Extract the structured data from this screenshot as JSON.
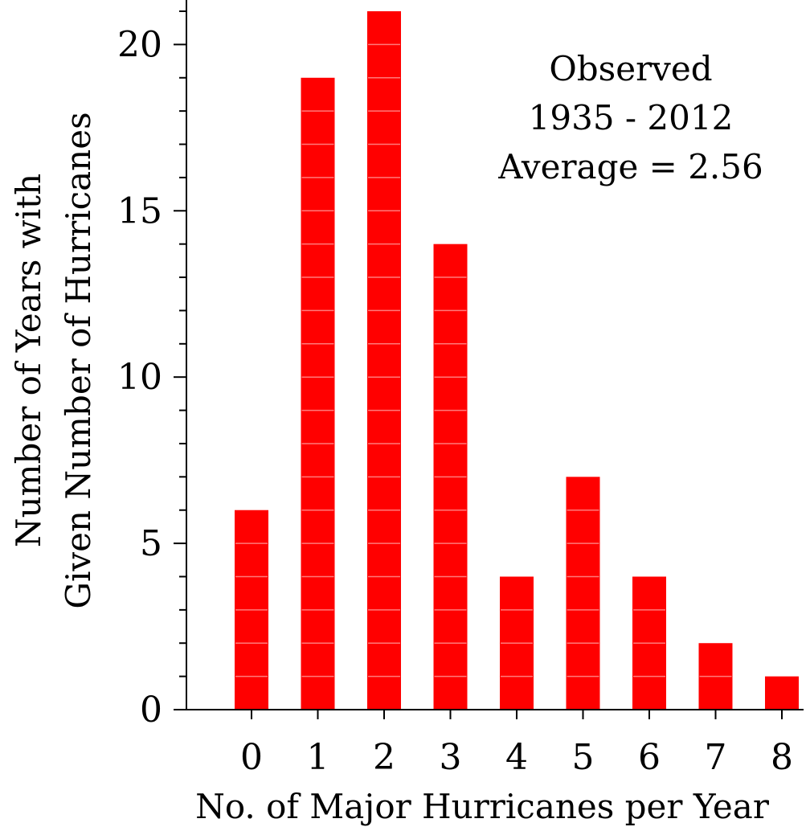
{
  "chart_data": {
    "type": "bar",
    "categories": [
      "0",
      "1",
      "2",
      "3",
      "4",
      "5",
      "6",
      "7",
      "8"
    ],
    "values": [
      6,
      19,
      21,
      14,
      4,
      7,
      4,
      2,
      1
    ],
    "xlabel": "No. of Major Hurricanes per Year",
    "ylabel_lines": [
      "Number of Years with",
      "Given Number of Hurricanes"
    ],
    "ylim": [
      0,
      21
    ],
    "yticks": [
      0,
      5,
      10,
      15,
      20
    ],
    "minor_tick_step": 1,
    "annotation": [
      "Observed",
      "1935 - 2012",
      "Average = 2.56"
    ],
    "grid": false,
    "bar_color": "#ff0000",
    "bar_stripe_color": "#ff7a7a"
  }
}
